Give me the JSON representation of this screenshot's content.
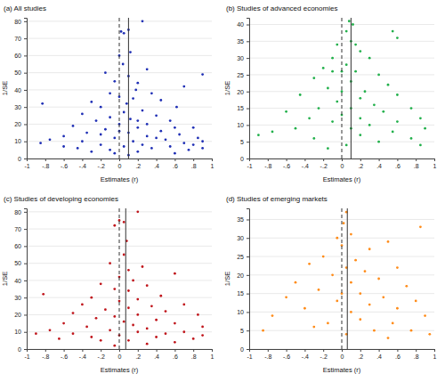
{
  "chart_data": [
    {
      "type": "scatter",
      "title": "(a) All studies",
      "x_label": "Estimates (r)",
      "y_label": "1/SE",
      "color": "#1f2fb5",
      "grid": true,
      "xlim": [
        -1,
        1
      ],
      "xticks": [
        -1,
        {
          "value": -0.8,
          "label": "-.8"
        },
        {
          "value": -0.6,
          "label": "-.6"
        },
        {
          "value": -0.4,
          "label": "-.4"
        },
        {
          "value": -0.2,
          "label": "-.2"
        },
        0,
        {
          "value": 0.2,
          "label": ".2"
        },
        {
          "value": 0.4,
          "label": ".4"
        },
        {
          "value": 0.6,
          "label": ".6"
        },
        {
          "value": 0.8,
          "label": ".8"
        },
        1
      ],
      "ylim": [
        0,
        82
      ],
      "yticks": [
        0,
        10,
        20,
        30,
        40,
        50,
        60,
        70,
        80
      ],
      "reference_lines": [
        {
          "value": 0,
          "line_style": "dashed"
        },
        {
          "value": 0.1,
          "line_style": "solid"
        }
      ],
      "x": [
        0.25,
        0.1,
        0.05,
        0.02,
        0.0,
        0.12,
        0.04,
        -0.15,
        0.3,
        0.1,
        -0.05,
        0.2,
        0.18,
        -0.1,
        0.35,
        0.0,
        0.15,
        -0.3,
        -0.83,
        0.45,
        0.08,
        0.62,
        -0.2,
        0.25,
        0.05,
        -0.4,
        0.4,
        0.7,
        0.55,
        -0.1,
        0.12,
        -0.25,
        0.3,
        0.0,
        -0.5,
        0.8,
        0.2,
        -0.15,
        0.45,
        -0.35,
        0.1,
        0.65,
        -0.6,
        0.3,
        -0.05,
        0.85,
        -0.75,
        0.5,
        0.15,
        -0.4,
        0.9,
        -0.85,
        0.7,
        0.25,
        -0.2,
        -0.6,
        0.55,
        0.05,
        0.9,
        -0.45,
        0.35,
        -0.1,
        0.75,
        0.2,
        -0.3,
        0.6,
        0.9,
        0.1,
        -0.05,
        0.4,
        -0.2,
        0.0,
        0.2,
        0.6,
        0.8
      ],
      "values": [
        80,
        75,
        73,
        74,
        60,
        62,
        55,
        50,
        52,
        48,
        45,
        44,
        40,
        38,
        38,
        36,
        35,
        33,
        32,
        34,
        32,
        30,
        30,
        28,
        27,
        26,
        25,
        42,
        22,
        24,
        23,
        22,
        20,
        20,
        19,
        18,
        18,
        17,
        16,
        15,
        15,
        14,
        13,
        13,
        12,
        12,
        11,
        11,
        10,
        10,
        10,
        9,
        9,
        8,
        8,
        7,
        7,
        7,
        6,
        6,
        6,
        5,
        5,
        4,
        4,
        3,
        49,
        2,
        3,
        12,
        14,
        16,
        22,
        18,
        8
      ]
    },
    {
      "type": "scatter",
      "title": "(b) Studies of advanced economies",
      "x_label": "Estimates (r)",
      "y_label": "1/SE",
      "color": "#22b04b",
      "grid": true,
      "xlim": [
        -1,
        1
      ],
      "xticks": [
        -1,
        {
          "value": -0.8,
          "label": "-.8"
        },
        {
          "value": -0.6,
          "label": "-.6"
        },
        {
          "value": -0.4,
          "label": "-.4"
        },
        {
          "value": -0.2,
          "label": "-.2"
        },
        0,
        {
          "value": 0.2,
          "label": ".2"
        },
        {
          "value": 0.4,
          "label": ".4"
        },
        {
          "value": 0.6,
          "label": ".6"
        },
        {
          "value": 0.8,
          "label": ".8"
        },
        1
      ],
      "ylim": [
        0,
        42
      ],
      "yticks": [
        0,
        5,
        10,
        15,
        20,
        25,
        30,
        35,
        40
      ],
      "reference_lines": [
        {
          "value": 0,
          "line_style": "dashed"
        },
        {
          "value": 0.1,
          "line_style": "solid"
        }
      ],
      "x": [
        0.08,
        0.12,
        0.05,
        0.55,
        0.6,
        0.1,
        -0.05,
        0.15,
        0.2,
        -0.1,
        0.3,
        0.05,
        -0.2,
        -0.1,
        0.0,
        0.15,
        0.4,
        -0.3,
        0.1,
        0.5,
        -0.15,
        0.25,
        0.0,
        -0.45,
        0.6,
        0.2,
        -0.05,
        0.35,
        -0.25,
        0.1,
        0.75,
        -0.6,
        0.45,
        0.0,
        0.2,
        -0.35,
        0.85,
        0.6,
        -0.1,
        0.3,
        -0.5,
        0.9,
        0.1,
        -0.75,
        0.55,
        0.2,
        -0.9,
        0.75,
        -0.3,
        0.4,
        0.05,
        0.85,
        -0.15
      ],
      "values": [
        41,
        40,
        38,
        38,
        36,
        35,
        34,
        34,
        32,
        30,
        30,
        28,
        27,
        26,
        26,
        26,
        25,
        24,
        23,
        22,
        21,
        20,
        20,
        19,
        19,
        18,
        17,
        16,
        15,
        15,
        15,
        14,
        14,
        13,
        12,
        12,
        12,
        11,
        11,
        10,
        9,
        9,
        9,
        8,
        8,
        7,
        7,
        6,
        6,
        5,
        4,
        4,
        3
      ]
    },
    {
      "type": "scatter",
      "title": "(c) Studies of developing economies",
      "x_label": "Estimates (r)",
      "y_label": "1/SE",
      "color": "#c0161c",
      "grid": true,
      "xlim": [
        -1,
        1
      ],
      "xticks": [
        -1,
        {
          "value": -0.8,
          "label": "-.8"
        },
        {
          "value": -0.6,
          "label": "-.6"
        },
        {
          "value": -0.4,
          "label": "-.4"
        },
        {
          "value": -0.2,
          "label": "-.2"
        },
        0,
        {
          "value": 0.2,
          "label": ".2"
        },
        {
          "value": 0.4,
          "label": ".4"
        },
        {
          "value": 0.6,
          "label": ".6"
        },
        {
          "value": 0.8,
          "label": ".8"
        },
        1
      ],
      "ylim": [
        0,
        82
      ],
      "yticks": [
        0,
        10,
        20,
        30,
        40,
        50,
        60,
        70,
        80
      ],
      "reference_lines": [
        {
          "value": 0,
          "line_style": "dashed"
        },
        {
          "value": 0.07,
          "line_style": "solid"
        }
      ],
      "x": [
        0.2,
        0.0,
        0.05,
        -0.05,
        0.08,
        0.05,
        -0.1,
        0.25,
        0.1,
        0.6,
        0.0,
        0.15,
        -0.2,
        0.3,
        -0.05,
        0.1,
        -0.82,
        0.45,
        -0.3,
        0.2,
        0.0,
        -0.4,
        0.35,
        0.7,
        0.1,
        -0.15,
        0.5,
        -0.5,
        0.2,
        0.85,
        -0.05,
        -0.25,
        0.4,
        0.05,
        -0.6,
        0.6,
        0.15,
        -0.35,
        0.9,
        0.3,
        -0.75,
        -0.1,
        0.7,
        0.2,
        -0.5,
        0.5,
        -0.9,
        0.0,
        0.9,
        -0.3,
        0.4,
        -0.65,
        0.8,
        0.1,
        -0.2,
        0.6,
        0.3,
        -0.05
      ],
      "values": [
        80,
        75,
        74,
        72,
        63,
        55,
        50,
        48,
        46,
        44,
        42,
        40,
        38,
        37,
        35,
        34,
        32,
        31,
        30,
        29,
        28,
        26,
        25,
        26,
        24,
        23,
        22,
        21,
        20,
        20,
        19,
        18,
        17,
        16,
        15,
        15,
        14,
        13,
        13,
        12,
        11,
        11,
        10,
        10,
        9,
        9,
        9,
        8,
        8,
        7,
        7,
        6,
        6,
        5,
        5,
        4,
        3,
        2
      ]
    },
    {
      "type": "scatter",
      "title": "(d) Studies of emerging markets",
      "x_label": "Estimates (r)",
      "y_label": "1/SE",
      "color": "#ff8c1a",
      "grid": true,
      "xlim": [
        -1,
        1
      ],
      "xticks": [
        -1,
        {
          "value": -0.8,
          "label": "-.8"
        },
        {
          "value": -0.6,
          "label": "-.6"
        },
        {
          "value": -0.4,
          "label": "-.4"
        },
        {
          "value": -0.2,
          "label": "-.2"
        },
        0,
        {
          "value": 0.2,
          "label": ".2"
        },
        {
          "value": 0.4,
          "label": ".4"
        },
        {
          "value": 0.6,
          "label": ".6"
        },
        {
          "value": 0.8,
          "label": ".8"
        },
        1
      ],
      "ylim": [
        0,
        38
      ],
      "yticks": [
        0,
        5,
        10,
        15,
        20,
        25,
        30,
        35
      ],
      "reference_lines": [
        {
          "value": 0,
          "line_style": "dashed"
        },
        {
          "value": 0.06,
          "line_style": "solid"
        }
      ],
      "x": [
        0.05,
        0.02,
        0.85,
        0.1,
        -0.05,
        0.5,
        0.0,
        0.3,
        -0.2,
        0.15,
        -0.35,
        0.05,
        0.6,
        0.25,
        -0.1,
        0.4,
        -0.5,
        0.1,
        0.7,
        -0.25,
        0.2,
        0.0,
        -0.6,
        0.45,
        0.8,
        -0.05,
        0.3,
        -0.4,
        0.6,
        0.1,
        -0.75,
        0.9,
        0.2,
        -0.15,
        0.55,
        -0.3,
        0.75,
        0.35,
        0.05,
        -0.85,
        0.95,
        0.5
      ],
      "values": [
        37,
        34,
        33,
        31,
        30,
        29,
        28,
        27,
        25,
        24,
        23,
        22,
        22,
        21,
        20,
        19,
        18,
        18,
        17,
        16,
        15,
        15,
        14,
        14,
        13,
        13,
        12,
        11,
        11,
        10,
        9,
        9,
        8,
        7,
        7,
        6,
        5,
        5,
        4,
        5,
        4,
        3
      ]
    }
  ]
}
